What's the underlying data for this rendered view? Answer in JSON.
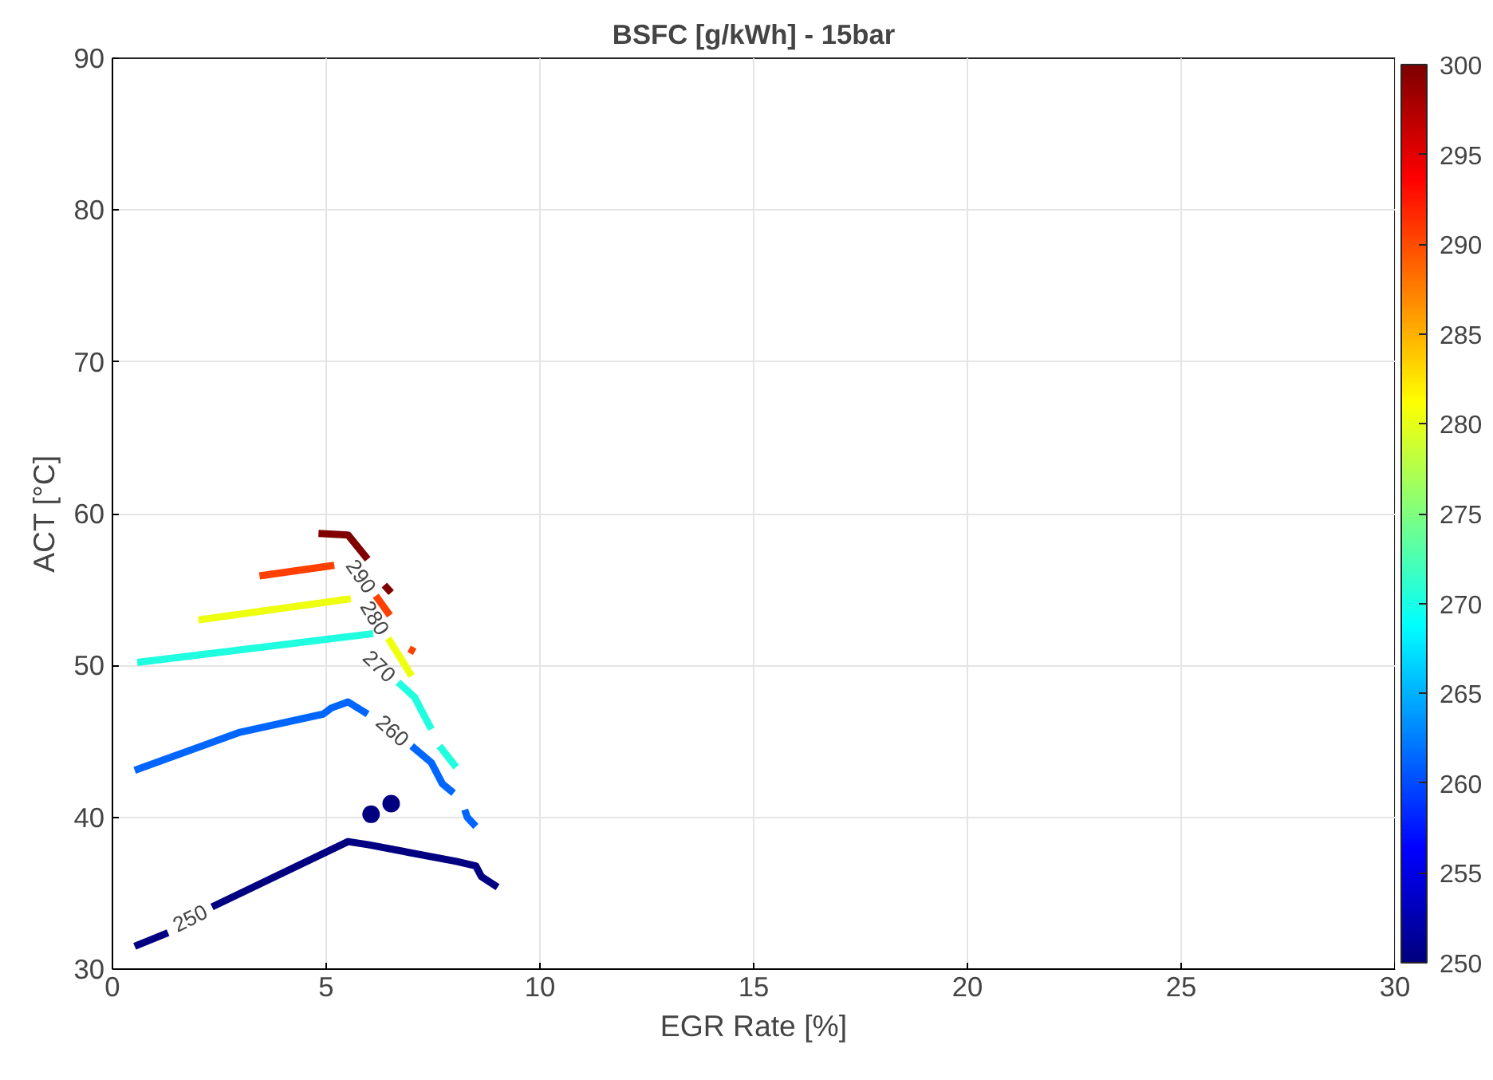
{
  "chart_data": {
    "type": "line",
    "title": "BSFC [g/kWh] - 15bar",
    "xlabel": "EGR Rate [%]",
    "ylabel": "ACT [°C]",
    "xlim": [
      0,
      30
    ],
    "xticks": [
      0,
      5,
      10,
      15,
      20,
      25,
      30
    ],
    "ylim": [
      30,
      90
    ],
    "yticks": [
      30,
      40,
      50,
      60,
      70,
      80,
      90
    ],
    "clim": [
      250,
      300
    ],
    "cticks": [
      250,
      255,
      260,
      265,
      270,
      275,
      280,
      285,
      290,
      295,
      300
    ],
    "grid": true,
    "marker": "none",
    "line_style": "solid",
    "series": [
      {
        "color": "#000080",
        "x": [
          0.52,
          1.3
        ],
        "values": [
          31.5,
          32.4
        ]
      },
      {
        "name": "250",
        "color": "#000080",
        "x": [
          2.33,
          5.51,
          5.97,
          8.04,
          8.5,
          8.63,
          9.01
        ],
        "values": [
          34.1,
          38.4,
          38.2,
          37.1,
          36.8,
          36.1,
          35.4
        ]
      },
      {
        "type": "scatter",
        "marker": "circle",
        "color": "#000080",
        "x": [
          6.52,
          6.05
        ],
        "values": [
          40.9,
          40.2
        ]
      },
      {
        "color": "#0066ff",
        "x": [
          0.52,
          2.98,
          4.93,
          5.12,
          5.51,
          5.97
        ],
        "values": [
          43.1,
          45.6,
          46.8,
          47.2,
          47.6,
          46.8
        ]
      },
      {
        "name": "260",
        "color": "#0066ff",
        "x": [
          7.0,
          7.46,
          7.72,
          7.98
        ],
        "values": [
          44.7,
          43.6,
          42.2,
          41.6
        ]
      },
      {
        "color": "#0066ff",
        "x": [
          8.24,
          8.3,
          8.5
        ],
        "values": [
          40.5,
          40.0,
          39.4
        ]
      },
      {
        "color": "#20ffdf",
        "x": [
          0.58,
          6.1
        ],
        "values": [
          50.2,
          52.1
        ]
      },
      {
        "name": "270",
        "color": "#20ffdf",
        "x": [
          6.68,
          7.07,
          7.46
        ],
        "values": [
          48.9,
          47.9,
          45.8
        ]
      },
      {
        "color": "#20ffdf",
        "x": [
          7.65,
          8.04
        ],
        "values": [
          44.7,
          43.3
        ]
      },
      {
        "color": "#efff10",
        "x": [
          2.01,
          5.58
        ],
        "values": [
          53.0,
          54.4
        ]
      },
      {
        "name": "280",
        "color": "#efff10",
        "x": [
          6.45,
          7.0
        ],
        "values": [
          51.8,
          49.3
        ]
      },
      {
        "color": "#ff4000",
        "x": [
          3.44,
          5.19
        ],
        "values": [
          55.9,
          56.6
        ]
      },
      {
        "name": "290",
        "color": "#ff4000",
        "x": [
          6.16,
          6.49
        ],
        "values": [
          54.6,
          53.3
        ]
      },
      {
        "color": "#ff4000",
        "x": [
          6.94,
          7.07
        ],
        "values": [
          51.1,
          50.9
        ]
      },
      {
        "color": "#800000",
        "x": [
          4.82,
          5.51,
          5.97
        ],
        "values": [
          58.7,
          58.6,
          57.0
        ]
      },
      {
        "color": "#800000",
        "x": [
          6.36,
          6.52
        ],
        "values": [
          55.3,
          54.8
        ]
      }
    ]
  }
}
